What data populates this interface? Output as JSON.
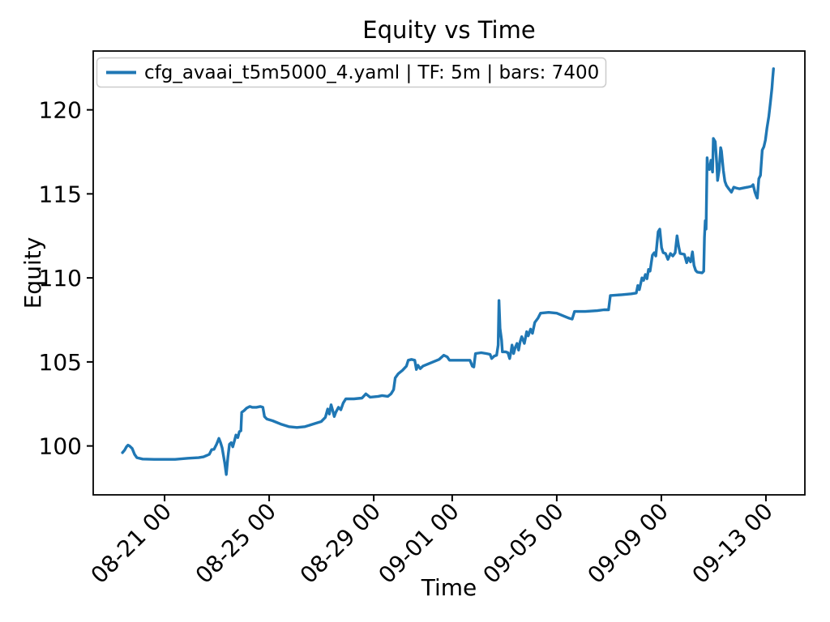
{
  "colors": {
    "background": "#ffffff",
    "axes": "#000000",
    "series_blue": "#1f77b4",
    "legend_border": "#cccccc"
  },
  "chart_data": {
    "type": "line",
    "title": "Equity vs Time",
    "xlabel": "Time",
    "ylabel": "Equity",
    "grid": false,
    "legend_position": "upper left",
    "x_unit": "days since 08-19 00:00, tick labels shown as MM-DD HH",
    "xlim": [
      -0.73,
      26.49
    ],
    "ylim": [
      97.09,
      123.5
    ],
    "x_ticks": [
      {
        "t": 2,
        "label": "08-21 00"
      },
      {
        "t": 6,
        "label": "08-25 00"
      },
      {
        "t": 10,
        "label": "08-29 00"
      },
      {
        "t": 13,
        "label": "09-01 00"
      },
      {
        "t": 17,
        "label": "09-05 00"
      },
      {
        "t": 21,
        "label": "09-09 00"
      },
      {
        "t": 25,
        "label": "09-13 00"
      }
    ],
    "y_ticks": [
      100,
      105,
      110,
      115,
      120
    ],
    "series": [
      {
        "name": "cfg_avaai_t5m5000_4.yaml | TF: 5m | bars: 7400",
        "config_file": "cfg_avaai_t5m5000_4.yaml",
        "timeframe": "5m",
        "bars": 7400,
        "color": "#1f77b4",
        "points": [
          [
            0.39,
            99.6
          ],
          [
            0.47,
            99.75
          ],
          [
            0.54,
            99.95
          ],
          [
            0.6,
            100.05
          ],
          [
            0.66,
            100.0
          ],
          [
            0.76,
            99.85
          ],
          [
            0.85,
            99.5
          ],
          [
            0.94,
            99.3
          ],
          [
            1.16,
            99.22
          ],
          [
            1.6,
            99.2
          ],
          [
            2.0,
            99.2
          ],
          [
            2.4,
            99.2
          ],
          [
            2.9,
            99.27
          ],
          [
            3.3,
            99.3
          ],
          [
            3.49,
            99.35
          ],
          [
            3.71,
            99.5
          ],
          [
            3.8,
            99.78
          ],
          [
            3.89,
            99.8
          ],
          [
            3.99,
            100.1
          ],
          [
            4.08,
            100.45
          ],
          [
            4.14,
            100.2
          ],
          [
            4.2,
            99.9
          ],
          [
            4.3,
            99.0
          ],
          [
            4.36,
            98.3
          ],
          [
            4.42,
            99.3
          ],
          [
            4.48,
            100.1
          ],
          [
            4.55,
            100.2
          ],
          [
            4.61,
            99.95
          ],
          [
            4.67,
            100.3
          ],
          [
            4.73,
            100.65
          ],
          [
            4.8,
            100.5
          ],
          [
            4.86,
            100.85
          ],
          [
            4.92,
            100.9
          ],
          [
            4.95,
            102.0
          ],
          [
            5.04,
            102.1
          ],
          [
            5.14,
            102.25
          ],
          [
            5.26,
            102.35
          ],
          [
            5.35,
            102.3
          ],
          [
            5.51,
            102.3
          ],
          [
            5.66,
            102.35
          ],
          [
            5.76,
            102.3
          ],
          [
            5.82,
            101.75
          ],
          [
            5.91,
            101.6
          ],
          [
            6.13,
            101.5
          ],
          [
            6.44,
            101.3
          ],
          [
            6.75,
            101.15
          ],
          [
            7.06,
            101.1
          ],
          [
            7.37,
            101.15
          ],
          [
            7.68,
            101.3
          ],
          [
            7.99,
            101.45
          ],
          [
            8.15,
            101.7
          ],
          [
            8.24,
            102.2
          ],
          [
            8.3,
            101.9
          ],
          [
            8.37,
            102.45
          ],
          [
            8.43,
            102.1
          ],
          [
            8.49,
            101.75
          ],
          [
            8.55,
            102.0
          ],
          [
            8.65,
            102.3
          ],
          [
            8.74,
            102.15
          ],
          [
            8.83,
            102.55
          ],
          [
            8.93,
            102.8
          ],
          [
            9.24,
            102.8
          ],
          [
            9.55,
            102.85
          ],
          [
            9.7,
            103.1
          ],
          [
            9.86,
            102.9
          ],
          [
            10.17,
            102.95
          ],
          [
            10.32,
            103.0
          ],
          [
            10.54,
            102.95
          ],
          [
            10.66,
            103.1
          ],
          [
            10.76,
            103.35
          ],
          [
            10.82,
            104.05
          ],
          [
            10.94,
            104.3
          ],
          [
            11.1,
            104.5
          ],
          [
            11.25,
            104.75
          ],
          [
            11.32,
            105.1
          ],
          [
            11.44,
            105.15
          ],
          [
            11.57,
            105.1
          ],
          [
            11.63,
            104.55
          ],
          [
            11.69,
            104.8
          ],
          [
            11.78,
            104.6
          ],
          [
            11.88,
            104.75
          ],
          [
            12.19,
            104.95
          ],
          [
            12.5,
            105.15
          ],
          [
            12.68,
            105.4
          ],
          [
            12.81,
            105.3
          ],
          [
            12.9,
            105.1
          ],
          [
            13.27,
            105.1
          ],
          [
            13.68,
            105.1
          ],
          [
            13.77,
            104.75
          ],
          [
            13.83,
            104.7
          ],
          [
            13.89,
            105.5
          ],
          [
            14.11,
            105.55
          ],
          [
            14.3,
            105.5
          ],
          [
            14.45,
            105.45
          ],
          [
            14.51,
            105.2
          ],
          [
            14.61,
            105.35
          ],
          [
            14.7,
            105.4
          ],
          [
            14.76,
            106.0
          ],
          [
            14.79,
            108.65
          ],
          [
            14.83,
            107.0
          ],
          [
            14.89,
            106.3
          ],
          [
            14.92,
            105.6
          ],
          [
            15.04,
            105.6
          ],
          [
            15.13,
            105.55
          ],
          [
            15.2,
            105.2
          ],
          [
            15.26,
            105.7
          ],
          [
            15.29,
            106.0
          ],
          [
            15.35,
            105.5
          ],
          [
            15.41,
            105.85
          ],
          [
            15.48,
            106.1
          ],
          [
            15.54,
            105.7
          ],
          [
            15.6,
            106.2
          ],
          [
            15.66,
            106.5
          ],
          [
            15.76,
            106.1
          ],
          [
            15.85,
            106.8
          ],
          [
            15.91,
            106.55
          ],
          [
            16.0,
            106.95
          ],
          [
            16.07,
            106.7
          ],
          [
            16.16,
            107.35
          ],
          [
            16.28,
            107.6
          ],
          [
            16.38,
            107.9
          ],
          [
            16.69,
            107.95
          ],
          [
            17.0,
            107.9
          ],
          [
            17.31,
            107.7
          ],
          [
            17.47,
            107.6
          ],
          [
            17.59,
            107.55
          ],
          [
            17.68,
            108.0
          ],
          [
            18.09,
            108.0
          ],
          [
            18.55,
            108.05
          ],
          [
            18.8,
            108.1
          ],
          [
            18.98,
            108.1
          ],
          [
            19.05,
            108.95
          ],
          [
            19.48,
            109.0
          ],
          [
            19.85,
            109.05
          ],
          [
            20.04,
            109.1
          ],
          [
            20.1,
            109.55
          ],
          [
            20.16,
            109.3
          ],
          [
            20.26,
            110.0
          ],
          [
            20.32,
            109.85
          ],
          [
            20.39,
            110.2
          ],
          [
            20.45,
            109.95
          ],
          [
            20.51,
            110.5
          ],
          [
            20.57,
            110.4
          ],
          [
            20.66,
            111.35
          ],
          [
            20.73,
            111.5
          ],
          [
            20.79,
            111.3
          ],
          [
            20.88,
            112.75
          ],
          [
            20.94,
            112.9
          ],
          [
            21.01,
            111.8
          ],
          [
            21.07,
            111.5
          ],
          [
            21.16,
            111.45
          ],
          [
            21.25,
            111.1
          ],
          [
            21.35,
            111.45
          ],
          [
            21.44,
            111.3
          ],
          [
            21.53,
            111.5
          ],
          [
            21.6,
            112.5
          ],
          [
            21.66,
            111.9
          ],
          [
            21.72,
            111.45
          ],
          [
            21.88,
            111.4
          ],
          [
            21.97,
            110.9
          ],
          [
            22.03,
            111.2
          ],
          [
            22.12,
            110.95
          ],
          [
            22.19,
            111.55
          ],
          [
            22.25,
            110.75
          ],
          [
            22.31,
            110.45
          ],
          [
            22.37,
            110.35
          ],
          [
            22.56,
            110.3
          ],
          [
            22.62,
            110.4
          ],
          [
            22.65,
            112.4
          ],
          [
            22.68,
            113.4
          ],
          [
            22.71,
            112.9
          ],
          [
            22.75,
            117.15
          ],
          [
            22.78,
            116.6
          ],
          [
            22.84,
            116.45
          ],
          [
            22.9,
            117.0
          ],
          [
            22.96,
            116.3
          ],
          [
            22.99,
            118.3
          ],
          [
            23.06,
            118.1
          ],
          [
            23.12,
            116.8
          ],
          [
            23.15,
            115.8
          ],
          [
            23.21,
            116.4
          ],
          [
            23.27,
            117.75
          ],
          [
            23.3,
            117.55
          ],
          [
            23.37,
            116.4
          ],
          [
            23.43,
            115.75
          ],
          [
            23.49,
            115.5
          ],
          [
            23.58,
            115.3
          ],
          [
            23.68,
            115.1
          ],
          [
            23.77,
            115.4
          ],
          [
            23.86,
            115.35
          ],
          [
            23.99,
            115.3
          ],
          [
            24.14,
            115.35
          ],
          [
            24.3,
            115.4
          ],
          [
            24.45,
            115.45
          ],
          [
            24.51,
            115.55
          ],
          [
            24.58,
            115.1
          ],
          [
            24.64,
            114.85
          ],
          [
            24.67,
            114.75
          ],
          [
            24.73,
            115.9
          ],
          [
            24.79,
            116.1
          ],
          [
            24.86,
            117.6
          ],
          [
            24.92,
            117.8
          ],
          [
            24.98,
            118.2
          ],
          [
            25.04,
            118.9
          ],
          [
            25.11,
            119.6
          ],
          [
            25.17,
            120.4
          ],
          [
            25.23,
            121.3
          ],
          [
            25.26,
            121.9
          ],
          [
            25.29,
            122.45
          ]
        ]
      }
    ]
  }
}
